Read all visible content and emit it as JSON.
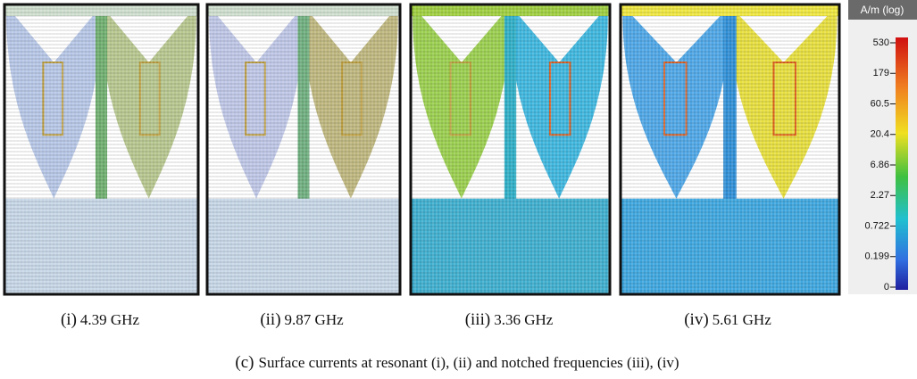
{
  "panels": [
    {
      "label": "(i)",
      "caption": "4.39 GHz"
    },
    {
      "label": "(ii)",
      "caption": "9.87 GHz"
    },
    {
      "label": "(iii)",
      "caption": "3.36 GHz"
    },
    {
      "label": "(iv)",
      "caption": "5.61 GHz"
    }
  ],
  "colorbar": {
    "title": "A/m (log)",
    "ticks": [
      "530",
      "179",
      "60.5",
      "20.4",
      "6.86",
      "2.27",
      "0.722",
      "0.199",
      "0"
    ]
  },
  "figure_caption": {
    "label": "(c)",
    "text": "Surface currents at resonant (i), (ii) and notched frequencies (iii), (iv)"
  }
}
